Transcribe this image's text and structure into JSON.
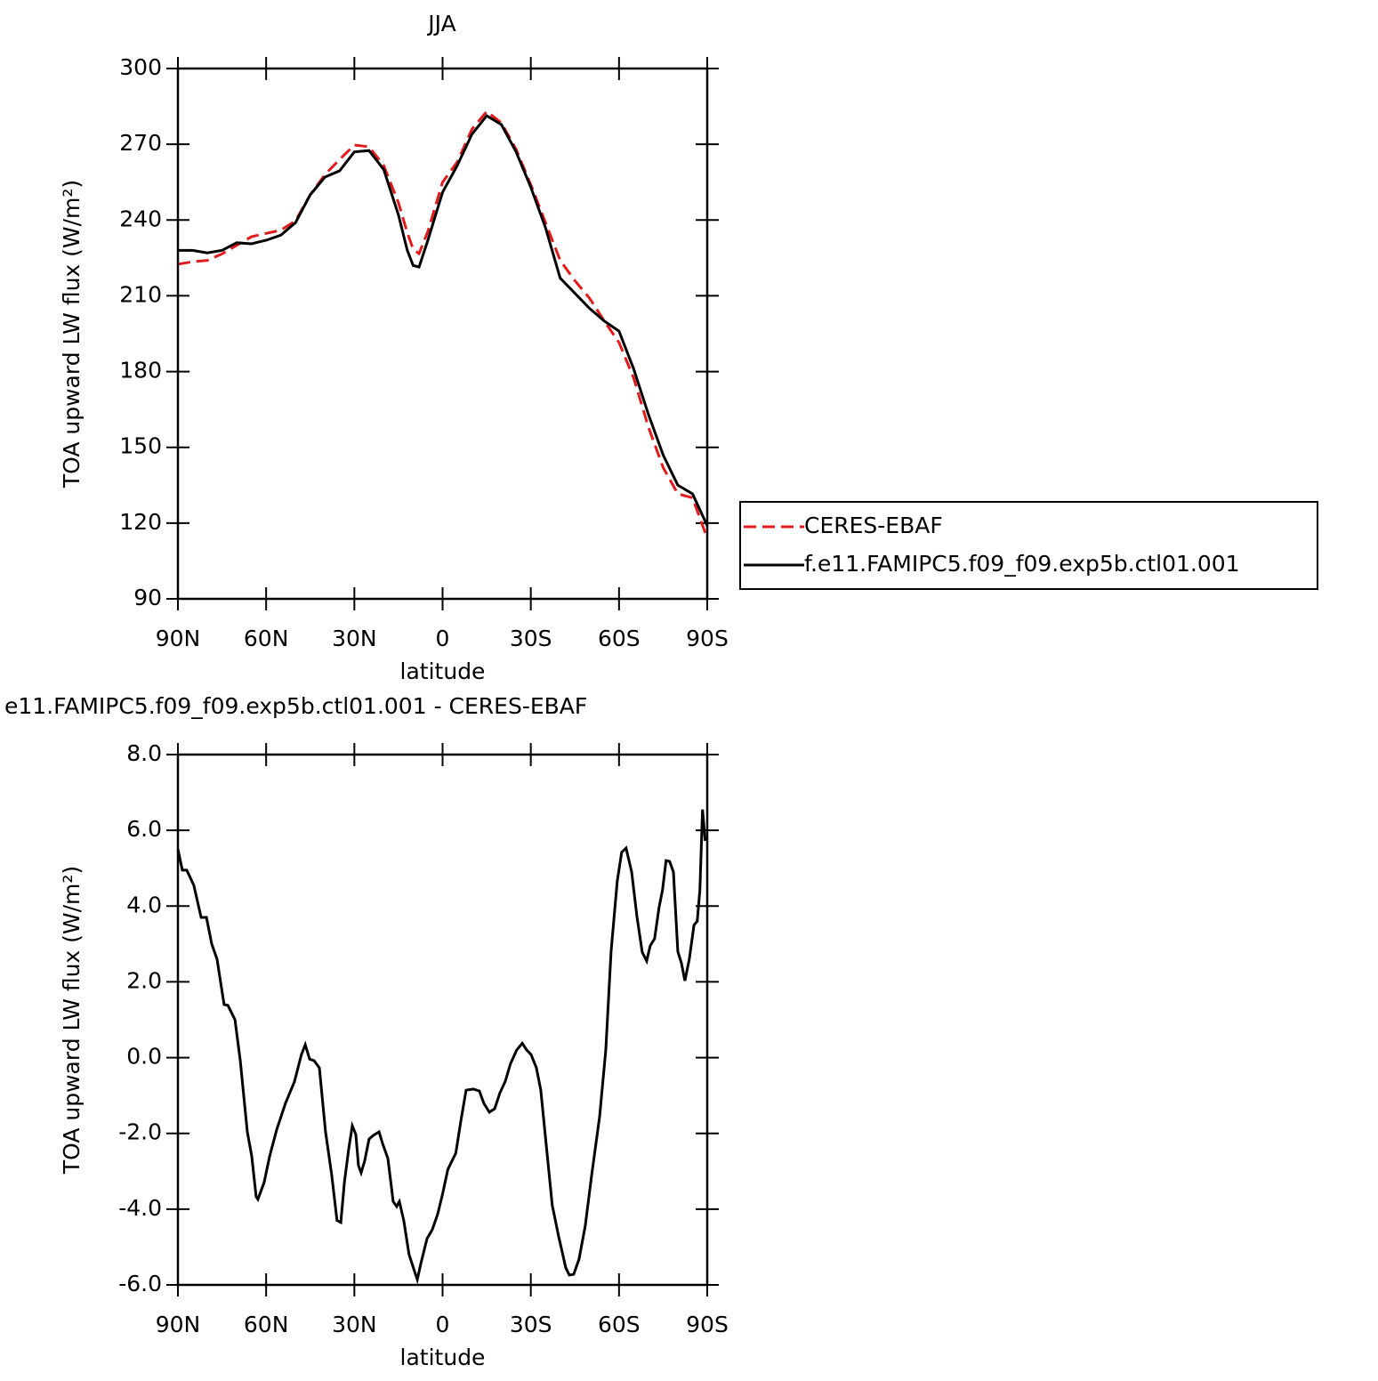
{
  "chart_data": [
    {
      "type": "line",
      "title": "JJA",
      "xlabel": "latitude",
      "ylabel": "TOA upward LW flux (W/m²)",
      "xlim": [
        90,
        -90
      ],
      "xticks": [
        {
          "value": 90,
          "label": "90N"
        },
        {
          "value": 60,
          "label": "60N"
        },
        {
          "value": 30,
          "label": "30N"
        },
        0,
        {
          "value": -30,
          "label": "30S"
        },
        {
          "value": -60,
          "label": "60S"
        },
        {
          "value": -90,
          "label": "90S"
        }
      ],
      "ylim": [
        90,
        300
      ],
      "yticks": [
        90,
        120,
        150,
        180,
        210,
        240,
        270,
        300
      ],
      "legend": "right",
      "x": [
        90,
        85,
        80,
        75,
        70,
        65,
        60,
        55,
        50,
        45,
        40,
        35,
        30,
        25,
        20,
        15,
        12,
        10,
        8,
        5,
        0,
        -5,
        -10,
        -15,
        -20,
        -25,
        -30,
        -35,
        -40,
        -45,
        -50,
        -55,
        -60,
        -65,
        -70,
        -75,
        -80,
        -85,
        -90
      ],
      "series": [
        {
          "name": "CERES-EBAF",
          "color": "#e31a1c",
          "style": "dashed",
          "values": [
            222.5,
            223.5,
            224,
            226.6,
            230,
            233.4,
            234.7,
            236,
            239.7,
            250,
            258,
            264,
            269.7,
            269,
            261.6,
            246.8,
            235,
            228.5,
            226.7,
            235.5,
            255,
            263,
            276,
            283,
            278.5,
            268,
            254,
            239,
            224,
            216,
            209,
            200,
            191.5,
            177.4,
            158,
            142,
            131.6,
            130,
            114
          ]
        },
        {
          "name": "f.e11.FAMIPC5.f09_f09.exp5b.ctl01.001",
          "color": "#000000",
          "style": "solid",
          "values": [
            228,
            228,
            227,
            228,
            231,
            230.6,
            232,
            234,
            239,
            250,
            257,
            259.5,
            267,
            267.5,
            260,
            242,
            228,
            222,
            221.4,
            232,
            251,
            261.6,
            274,
            281.3,
            277.8,
            267,
            253,
            237,
            217,
            211,
            205,
            200,
            196,
            181,
            163,
            147,
            135,
            131.6,
            119
          ]
        }
      ]
    },
    {
      "type": "line",
      "title": "e11.FAMIPC5.f09_f09.exp5b.ctl01.001 - CERES-EBAF",
      "xlabel": "latitude",
      "ylabel": "TOA upward LW flux (W/m²)",
      "xlim": [
        90,
        -90
      ],
      "xticks": [
        {
          "value": 90,
          "label": "90N"
        },
        {
          "value": 60,
          "label": "60N"
        },
        {
          "value": 30,
          "label": "30N"
        },
        0,
        {
          "value": -30,
          "label": "30S"
        },
        {
          "value": -60,
          "label": "60S"
        },
        {
          "value": -90,
          "label": "90S"
        }
      ],
      "ylim": [
        -6,
        8
      ],
      "yticks": [
        {
          "value": -6,
          "label": "-6.0"
        },
        {
          "value": -4,
          "label": "-4.0"
        },
        {
          "value": -2,
          "label": "-2.0"
        },
        {
          "value": 0,
          "label": "0.0"
        },
        {
          "value": 2,
          "label": "2.0"
        },
        {
          "value": 4,
          "label": "4.0"
        },
        {
          "value": 6,
          "label": "6.0"
        },
        {
          "value": 8,
          "label": "8.0"
        }
      ],
      "x": [
        90,
        88.5,
        87,
        84.6,
        82.1,
        80.3,
        78.5,
        76.7,
        74.3,
        73,
        70.6,
        68.8,
        66.4,
        64.9,
        63.4,
        62.8,
        60.7,
        58.8,
        56.4,
        53.4,
        50.4,
        48,
        46.7,
        45.2,
        43.7,
        41.9,
        39.8,
        37.7,
        35.9,
        34.6,
        33.4,
        31.9,
        30.7,
        29.5,
        28.6,
        27.7,
        26.5,
        25,
        23.5,
        21.6,
        20.4,
        18.6,
        16.8,
        15.6,
        14.7,
        13.2,
        11.4,
        9.2,
        8.6,
        7.4,
        5.3,
        3.5,
        1.7,
        0,
        -1.8,
        -4.5,
        -6.2,
        -8,
        -10.4,
        -12.5,
        -14,
        -15.9,
        -17.7,
        -19.5,
        -21.3,
        -23.1,
        -25.2,
        -27.1,
        -28.6,
        -30.1,
        -31.9,
        -33.4,
        -35.2,
        -37.3,
        -39.5,
        -41.9,
        -43.1,
        -44.6,
        -46.4,
        -48.5,
        -50.7,
        -53.4,
        -55.5,
        -57.3,
        -59.4,
        -60.9,
        -62.4,
        -64.3,
        -66.1,
        -67.9,
        -69.4,
        -70.6,
        -72.1,
        -73.6,
        -74.8,
        -76,
        -77.2,
        -78.5,
        -80,
        -81.2,
        -82.4,
        -83.9,
        -85.5,
        -86.6,
        -87.5,
        -88.4,
        -89.3
      ],
      "series": [
        {
          "color": "#000000",
          "style": "solid",
          "values": [
            5.5,
            4.95,
            4.95,
            4.55,
            3.7,
            3.7,
            3.0,
            2.6,
            1.4,
            1.38,
            1.0,
            -0.08,
            -1.96,
            -2.6,
            -3.67,
            -3.74,
            -3.3,
            -2.6,
            -1.9,
            -1.2,
            -0.64,
            0.08,
            0.34,
            -0.04,
            -0.08,
            -0.27,
            -1.96,
            -3.1,
            -4.3,
            -4.35,
            -3.3,
            -2.4,
            -1.8,
            -2.03,
            -2.85,
            -3.04,
            -2.73,
            -2.15,
            -2.05,
            -1.96,
            -2.27,
            -2.66,
            -3.8,
            -3.93,
            -3.8,
            -4.3,
            -5.2,
            -5.72,
            -5.86,
            -5.44,
            -4.78,
            -4.54,
            -4.14,
            -3.6,
            -2.95,
            -2.52,
            -1.68,
            -0.86,
            -0.83,
            -0.88,
            -1.2,
            -1.44,
            -1.35,
            -0.93,
            -0.63,
            -0.16,
            0.2,
            0.38,
            0.2,
            0.08,
            -0.27,
            -0.86,
            -2.27,
            -3.9,
            -4.73,
            -5.55,
            -5.74,
            -5.72,
            -5.32,
            -4.45,
            -3.1,
            -1.56,
            0.2,
            2.8,
            4.66,
            5.42,
            5.53,
            4.9,
            3.72,
            2.78,
            2.55,
            2.95,
            3.14,
            3.96,
            4.43,
            5.2,
            5.18,
            4.9,
            2.8,
            2.5,
            2.03,
            2.6,
            3.5,
            3.6,
            4.43,
            6.55,
            5.72
          ]
        }
      ]
    }
  ]
}
